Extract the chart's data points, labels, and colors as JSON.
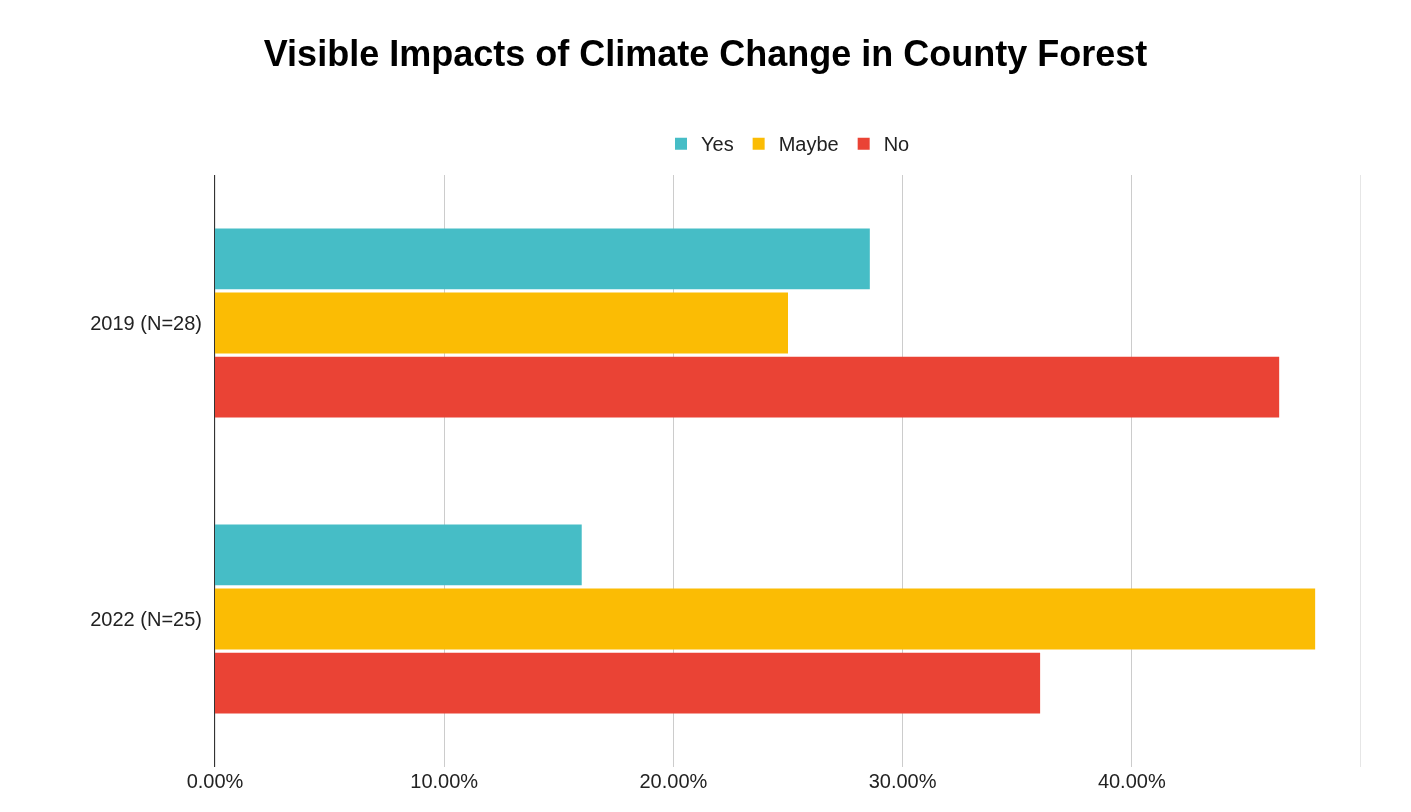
{
  "chart_data": {
    "type": "bar",
    "orientation": "horizontal",
    "title": "Visible Impacts of Climate Change in County Forest",
    "categories": [
      "2019 (N=28)",
      "2022 (N=25)"
    ],
    "series": [
      {
        "name": "Yes",
        "color": "#46bdc6",
        "values": [
          28.57,
          16
        ]
      },
      {
        "name": "Maybe",
        "color": "#fbbc04",
        "values": [
          25,
          48
        ]
      },
      {
        "name": "No",
        "color": "#ea4335",
        "values": [
          46.43,
          36
        ]
      }
    ],
    "xlim": [
      0,
      50
    ],
    "xticks": [
      {
        "value": 0,
        "label": "0.00%"
      },
      {
        "value": 10,
        "label": "10.00%"
      },
      {
        "value": 20,
        "label": "20.00%"
      },
      {
        "value": 30,
        "label": "30.00%"
      },
      {
        "value": 40,
        "label": "40.00%"
      },
      {
        "value": 50,
        "label": null
      }
    ],
    "grid": "x",
    "legend": "top"
  }
}
